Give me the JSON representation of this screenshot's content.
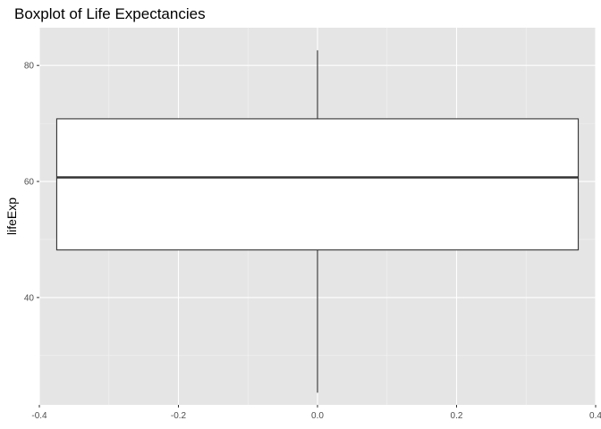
{
  "chart_data": {
    "type": "boxplot",
    "title": "Boxplot of Life Expectancies",
    "xlabel": "",
    "ylabel": "lifeExp",
    "xlim": [
      -0.4,
      0.4
    ],
    "ylim": [
      21.5,
      86.5
    ],
    "x_ticks": [
      -0.4,
      -0.2,
      0.0,
      0.2,
      0.4
    ],
    "x_tick_labels": [
      "-0.4",
      "-0.2",
      "0.0",
      "0.2",
      "0.4"
    ],
    "y_ticks": [
      40,
      60,
      80
    ],
    "y_tick_labels": [
      "40",
      "60",
      "80"
    ],
    "grid": true,
    "legend": "none",
    "box": {
      "center": 0.0,
      "width": 0.75,
      "whisker_min": 23.6,
      "q1": 48.2,
      "median": 60.7,
      "q3": 70.8,
      "whisker_max": 82.6
    },
    "colors": {
      "panel_background": "#e5e5e5",
      "grid_major": "#ffffff",
      "grid_minor": "#f2f2f2",
      "box_fill": "#ffffff",
      "box_line": "#333333",
      "tick_text": "#4d4d4d"
    }
  }
}
